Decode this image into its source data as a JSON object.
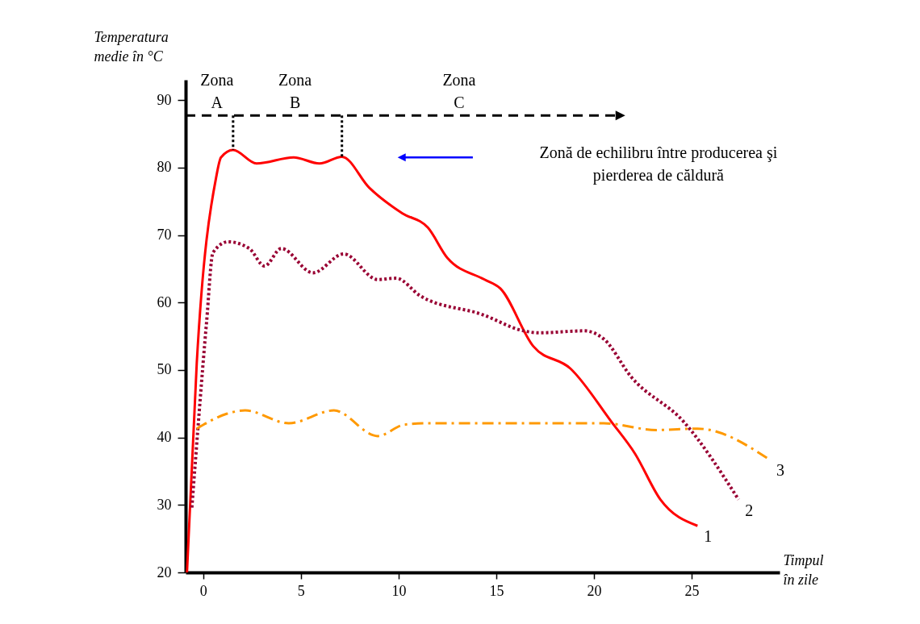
{
  "chart_data": {
    "type": "line",
    "xlabel": "Timpul\nîn zile",
    "ylabel": "Temperatura\nmedie în °C",
    "xlim": [
      -0.9,
      29.5
    ],
    "ylim": [
      20,
      93
    ],
    "xticks": [
      0,
      5,
      10,
      15,
      20,
      25
    ],
    "yticks": [
      20,
      30,
      40,
      50,
      60,
      70,
      80,
      90
    ],
    "grid": false,
    "marker": "none",
    "series": [
      {
        "name": "1",
        "color": "#ff0000",
        "line_style": "solid",
        "x": [
          -0.83,
          -0.33,
          0.66,
          0.91,
          1.53,
          2.73,
          4.63,
          5.95,
          7.1,
          8.5,
          10.2,
          11.5,
          12.5,
          14.4,
          15.2,
          16.9,
          18.8,
          20.9,
          22.1,
          23.4,
          25.3
        ],
        "values": [
          20,
          51,
          78.5,
          81.5,
          82.6,
          80.6,
          81.5,
          80.6,
          81.6,
          77,
          73.2,
          71.1,
          66.6,
          63.4,
          62.1,
          53.5,
          50.2,
          42.3,
          37.6,
          30.8,
          26.9
        ]
      },
      {
        "name": "2",
        "color": "#990033",
        "line_style": "dotted",
        "x": [
          -0.58,
          0.17,
          0.5,
          1.28,
          2.36,
          3.14,
          4.0,
          5.62,
          7.19,
          8.93,
          9.88,
          11.1,
          14.3,
          16.4,
          17.2,
          19.5,
          20.5,
          21.9,
          24.6,
          27.4
        ],
        "values": [
          29.6,
          57,
          67.4,
          69,
          68,
          65.4,
          68,
          64.4,
          67.2,
          63.4,
          63.6,
          61,
          58.2,
          55.8,
          55.5,
          55.8,
          54.6,
          49,
          42.3,
          30.8
        ]
      },
      {
        "name": "3",
        "color": "#ff9900",
        "line_style": "dashed",
        "x": [
          -0.33,
          1.2,
          2.15,
          4.38,
          6.69,
          8.93,
          10.3,
          11.5,
          20.5,
          23.2,
          25.3,
          29.0
        ],
        "values": [
          41.3,
          43.5,
          44,
          42.1,
          44,
          40.2,
          41.9,
          42.1,
          42.1,
          41.1,
          41.3,
          36.7
        ]
      }
    ],
    "annotations": [
      {
        "text": "Zona\nA",
        "x": 1.53,
        "y": 82.6
      },
      "Zona\nB",
      "Zona\nC",
      "Zonă de echilibru între producerea şi\npierderea de căldură"
    ]
  }
}
